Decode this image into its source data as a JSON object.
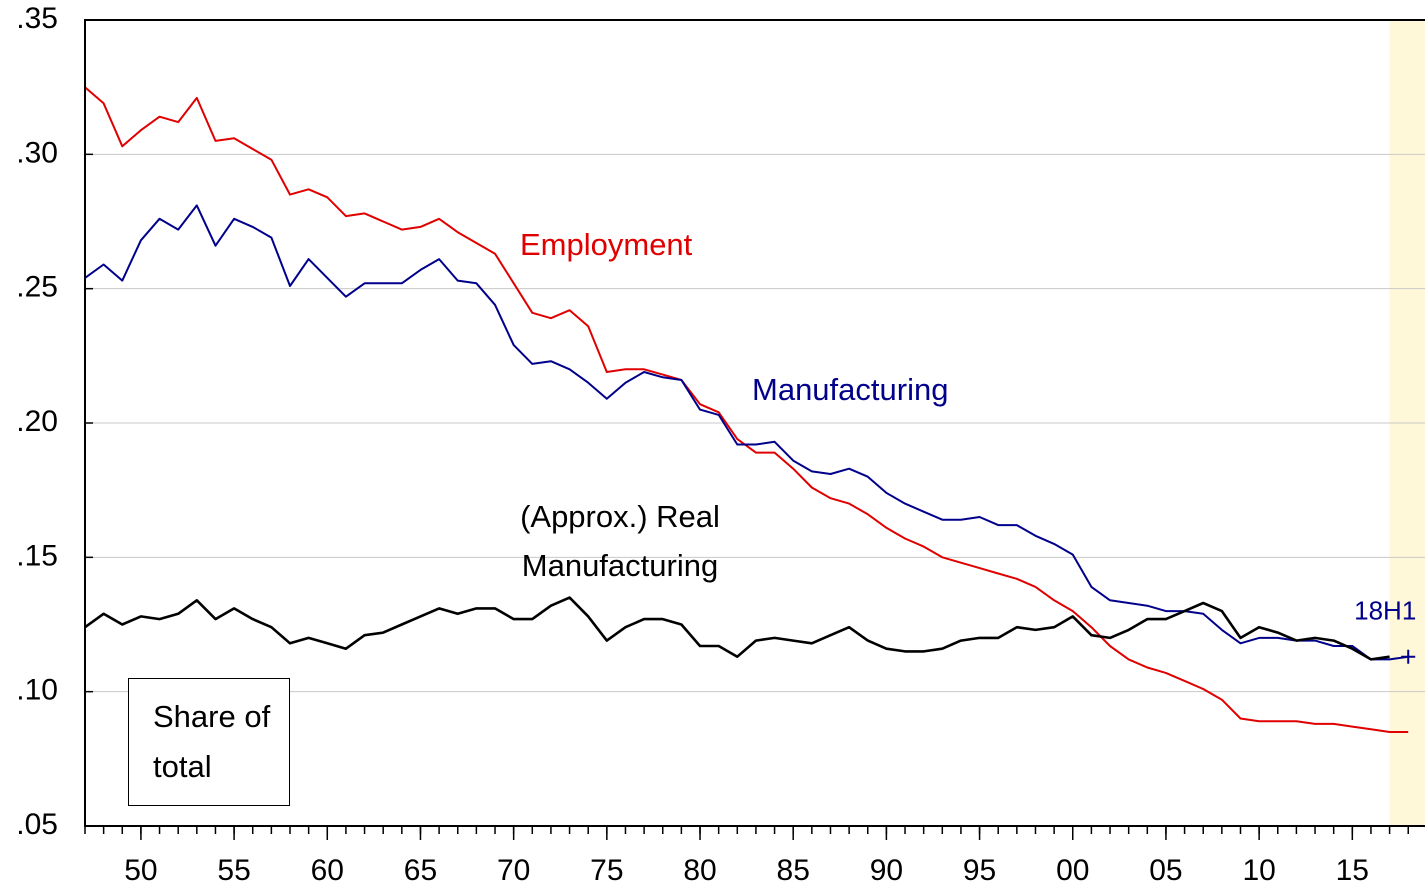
{
  "chart_data": {
    "type": "line",
    "x": [
      1947,
      1948,
      1949,
      1950,
      1951,
      1952,
      1953,
      1954,
      1955,
      1956,
      1957,
      1958,
      1959,
      1960,
      1961,
      1962,
      1963,
      1964,
      1965,
      1966,
      1967,
      1968,
      1969,
      1970,
      1971,
      1972,
      1973,
      1974,
      1975,
      1976,
      1977,
      1978,
      1979,
      1980,
      1981,
      1982,
      1983,
      1984,
      1985,
      1986,
      1987,
      1988,
      1989,
      1990,
      1991,
      1992,
      1993,
      1994,
      1995,
      1996,
      1997,
      1998,
      1999,
      2000,
      2001,
      2002,
      2003,
      2004,
      2005,
      2006,
      2007,
      2008,
      2009,
      2010,
      2011,
      2012,
      2013,
      2014,
      2015,
      2016,
      2017,
      2018
    ],
    "series": [
      {
        "name": "Employment",
        "color": "#e00000",
        "values": [
          0.325,
          0.319,
          0.303,
          0.309,
          0.314,
          0.312,
          0.321,
          0.305,
          0.306,
          0.302,
          0.298,
          0.285,
          0.287,
          0.284,
          0.277,
          0.278,
          0.275,
          0.272,
          0.273,
          0.276,
          0.271,
          0.267,
          0.263,
          0.252,
          0.241,
          0.239,
          0.242,
          0.236,
          0.219,
          0.22,
          0.22,
          0.218,
          0.216,
          0.207,
          0.204,
          0.194,
          0.189,
          0.189,
          0.183,
          0.176,
          0.172,
          0.17,
          0.166,
          0.161,
          0.157,
          0.154,
          0.15,
          0.148,
          0.146,
          0.144,
          0.142,
          0.139,
          0.134,
          0.13,
          0.124,
          0.117,
          0.112,
          0.109,
          0.107,
          0.104,
          0.101,
          0.097,
          0.09,
          0.089,
          0.089,
          0.089,
          0.088,
          0.088,
          0.087,
          0.086,
          0.085,
          0.085
        ]
      },
      {
        "name": "Manufacturing",
        "color": "#00008b",
        "values": [
          0.254,
          0.259,
          0.253,
          0.268,
          0.276,
          0.272,
          0.281,
          0.266,
          0.276,
          0.273,
          0.269,
          0.251,
          0.261,
          0.254,
          0.247,
          0.252,
          0.252,
          0.252,
          0.257,
          0.261,
          0.253,
          0.252,
          0.244,
          0.229,
          0.222,
          0.223,
          0.22,
          0.215,
          0.209,
          0.215,
          0.219,
          0.217,
          0.216,
          0.205,
          0.203,
          0.192,
          0.192,
          0.193,
          0.186,
          0.182,
          0.181,
          0.183,
          0.18,
          0.174,
          0.17,
          0.167,
          0.164,
          0.164,
          0.165,
          0.162,
          0.162,
          0.158,
          0.155,
          0.151,
          0.139,
          0.134,
          0.133,
          0.132,
          0.13,
          0.13,
          0.129,
          0.123,
          0.118,
          0.12,
          0.12,
          0.119,
          0.119,
          0.117,
          0.117,
          0.112,
          0.112,
          0.113
        ]
      },
      {
        "name": "(Approx.) Real Manufacturing",
        "color": "#000000",
        "values": [
          0.124,
          0.129,
          0.125,
          0.128,
          0.127,
          0.129,
          0.134,
          0.127,
          0.131,
          0.127,
          0.124,
          0.118,
          0.12,
          0.118,
          0.116,
          0.121,
          0.122,
          0.125,
          0.128,
          0.131,
          0.129,
          0.131,
          0.131,
          0.127,
          0.127,
          0.132,
          0.135,
          0.128,
          0.119,
          0.124,
          0.127,
          0.127,
          0.125,
          0.117,
          0.117,
          0.113,
          0.119,
          0.12,
          0.119,
          0.118,
          0.121,
          0.124,
          0.119,
          0.116,
          0.115,
          0.115,
          0.116,
          0.119,
          0.12,
          0.12,
          0.124,
          0.123,
          0.124,
          0.128,
          0.121,
          0.12,
          0.123,
          0.127,
          0.127,
          0.13,
          0.133,
          0.13,
          0.12,
          0.124,
          0.122,
          0.119,
          0.12,
          0.119,
          0.116,
          0.112,
          0.113,
          null
        ]
      }
    ],
    "xlim": [
      1947,
      2018.9
    ],
    "ylim": [
      0.05,
      0.35
    ],
    "xticks": [
      {
        "value": 1950,
        "label": "50"
      },
      {
        "value": 1955,
        "label": "55"
      },
      {
        "value": 1960,
        "label": "60"
      },
      {
        "value": 1965,
        "label": "65"
      },
      {
        "value": 1970,
        "label": "70"
      },
      {
        "value": 1975,
        "label": "75"
      },
      {
        "value": 1980,
        "label": "80"
      },
      {
        "value": 1985,
        "label": "85"
      },
      {
        "value": 1990,
        "label": "90"
      },
      {
        "value": 1995,
        "label": "95"
      },
      {
        "value": 2000,
        "label": "00"
      },
      {
        "value": 2005,
        "label": "05"
      },
      {
        "value": 2010,
        "label": "10"
      },
      {
        "value": 2015,
        "label": "15"
      }
    ],
    "yticks": [
      {
        "value": 0.05,
        "label": ".05"
      },
      {
        "value": 0.1,
        "label": ".10"
      },
      {
        "value": 0.15,
        "label": ".15"
      },
      {
        "value": 0.2,
        "label": ".20"
      },
      {
        "value": 0.25,
        "label": ".25"
      },
      {
        "value": 0.3,
        "label": ".30"
      },
      {
        "value": 0.35,
        "label": ".35"
      }
    ],
    "grid": true,
    "shaded_region": {
      "x": [
        2017,
        2018.9
      ],
      "color": "#fff8d8"
    },
    "annotations": [
      {
        "text": "Share of total"
      },
      {
        "text": "18H1"
      }
    ]
  }
}
